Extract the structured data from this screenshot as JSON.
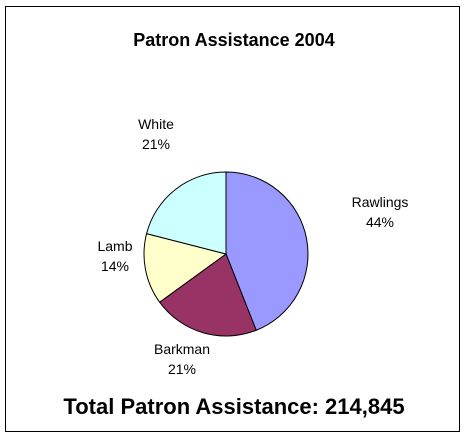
{
  "chart_data": {
    "type": "pie",
    "title": "Patron Assistance 2004",
    "categories": [
      "Rawlings",
      "Barkman",
      "Lamb",
      "White"
    ],
    "values": [
      44,
      21,
      14,
      21
    ],
    "value_labels": [
      "44%",
      "21%",
      "14%",
      "21%"
    ],
    "colors": [
      "#9999ff",
      "#993366",
      "#ffffcc",
      "#ccffff"
    ],
    "start_angle_deg": 0,
    "direction": "clockwise",
    "legend": "none",
    "footer": "Total Patron Assistance: 214,845"
  }
}
